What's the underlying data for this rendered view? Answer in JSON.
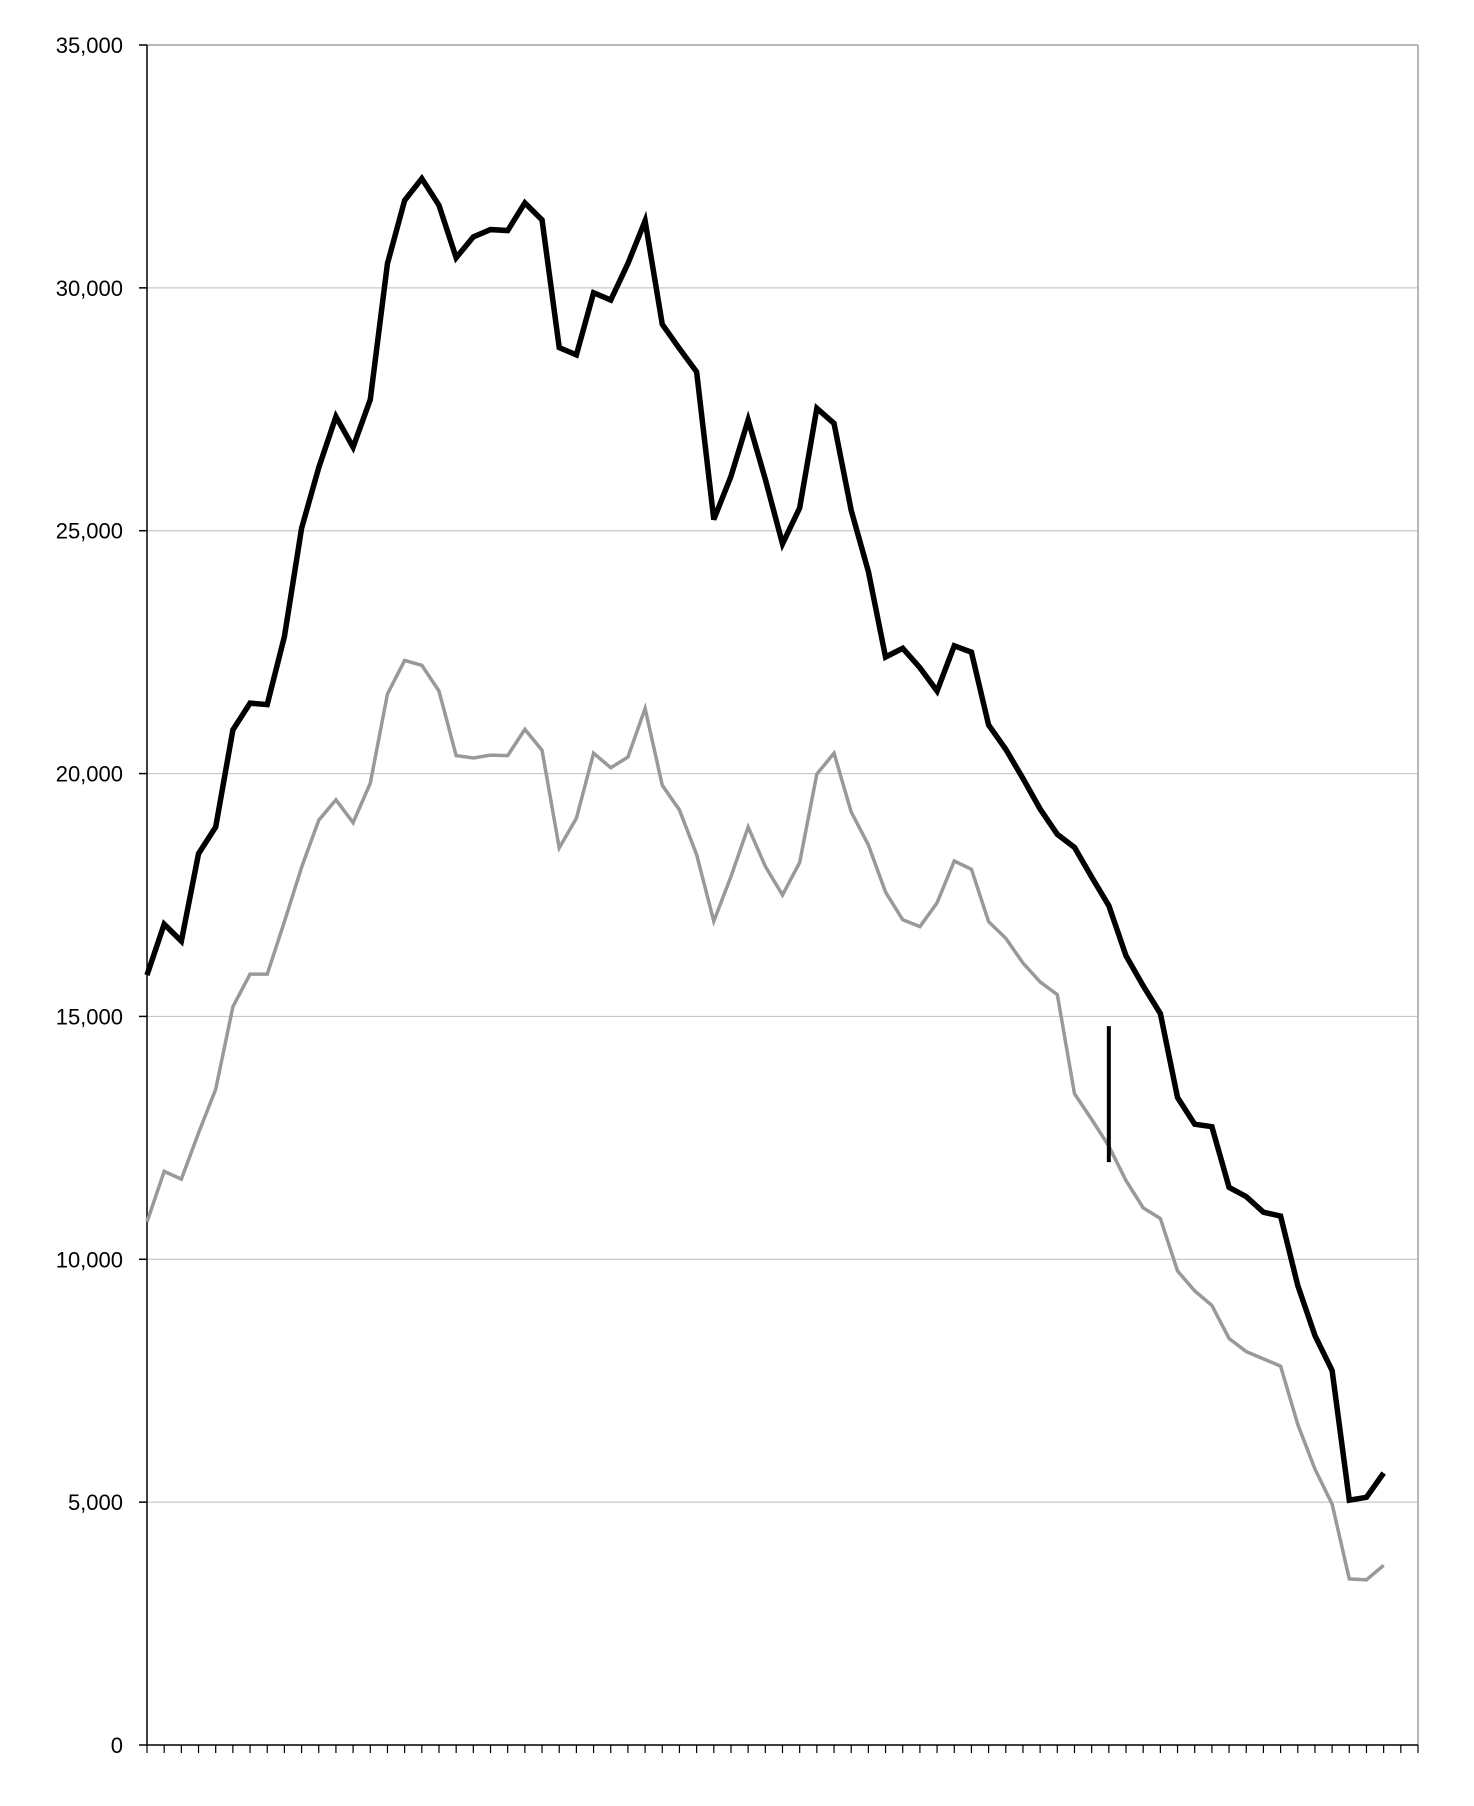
{
  "chart_data": {
    "type": "line",
    "title": "",
    "xlabel": "",
    "ylabel": "",
    "ylim": [
      0,
      35000
    ],
    "yticks": [
      0,
      5000,
      10000,
      15000,
      20000,
      25000,
      30000,
      35000
    ],
    "ytick_labels": [
      "0",
      "5,000",
      "10,000",
      "15,000",
      "20,000",
      "25,000",
      "30,000",
      "35,000"
    ],
    "grid": "horizontal",
    "legend": "none",
    "x": [
      1,
      2,
      3,
      4,
      5,
      6,
      7,
      8,
      9,
      10,
      11,
      12,
      13,
      14,
      15,
      16,
      17,
      18,
      19,
      20,
      21,
      22,
      23,
      24,
      25,
      26,
      27,
      28,
      29,
      30,
      31,
      32,
      33,
      34,
      35,
      36,
      37,
      38,
      39,
      40,
      41,
      42,
      43,
      44,
      45,
      46,
      47,
      48,
      49,
      50,
      51,
      52,
      53,
      54,
      55,
      56,
      57,
      58,
      59,
      60,
      61,
      62,
      63,
      64,
      65,
      66,
      67,
      68,
      69,
      70,
      71,
      72,
      73,
      74,
      75
    ],
    "series": [
      {
        "color": "#000000",
        "values": [
          15850,
          16900,
          16550,
          18350,
          18900,
          20900,
          21450,
          21420,
          22820,
          25050,
          26300,
          27350,
          26720,
          27700,
          30500,
          31800,
          32250,
          31700,
          30620,
          31050,
          31200,
          31180,
          31750,
          31400,
          28770,
          28620,
          29900,
          29750,
          30500,
          31380,
          29250,
          28750,
          28270,
          25230,
          26120,
          27280,
          26060,
          24730,
          25470,
          27520,
          27210,
          25420,
          24160,
          22400,
          22580,
          22180,
          21700,
          22630,
          22500,
          21000,
          20500,
          19900,
          19270,
          18750,
          18480,
          17870,
          17280,
          16250,
          15630,
          15060,
          13330,
          12780,
          12730,
          11480,
          11290,
          10970,
          10890,
          9460,
          8430,
          7710,
          5040,
          5100,
          5600,
          null,
          null
        ],
        "segment": {
          "x": [
            57,
            57
          ],
          "values": [
            14800,
            12000
          ]
        }
      },
      {
        "color": "#999999",
        "values": [
          10770,
          11810,
          11650,
          12600,
          13500,
          15200,
          15870,
          15870,
          16950,
          18070,
          19040,
          19460,
          18990,
          19800,
          21640,
          22330,
          22230,
          21700,
          20370,
          20320,
          20380,
          20370,
          20910,
          20480,
          18470,
          19080,
          20420,
          20120,
          20340,
          21340,
          19760,
          19250,
          18330,
          16960,
          17880,
          18900,
          18090,
          17500,
          18170,
          19990,
          20420,
          19210,
          18530,
          17560,
          16990,
          16850,
          17340,
          18200,
          18030,
          16950,
          16610,
          16100,
          15710,
          15450,
          13410,
          12880,
          12330,
          11620,
          11060,
          10840,
          9760,
          9350,
          9050,
          8370,
          8100,
          7950,
          7800,
          6600,
          5680,
          4960,
          3420,
          3400,
          3700,
          null,
          null
        ]
      }
    ]
  }
}
